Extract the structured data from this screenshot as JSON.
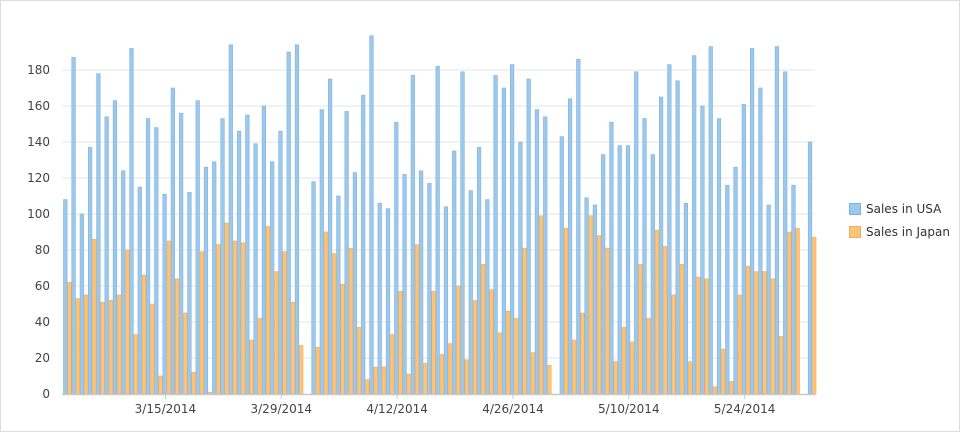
{
  "chart_data": {
    "type": "bar",
    "start_date": "3/3/2014",
    "x_tick_labels": [
      {
        "index": 12,
        "label": "3/15/2014"
      },
      {
        "index": 26,
        "label": "3/29/2014"
      },
      {
        "index": 40,
        "label": "4/12/2014"
      },
      {
        "index": 54,
        "label": "4/26/2014"
      },
      {
        "index": 68,
        "label": "5/10/2014"
      },
      {
        "index": 82,
        "label": "5/24/2014"
      }
    ],
    "ylim": [
      0,
      200
    ],
    "y_ticks": [
      0,
      20,
      40,
      60,
      80,
      100,
      120,
      140,
      160,
      180
    ],
    "grid": true,
    "legend_position": "right",
    "series": [
      {
        "name": "Sales in USA",
        "color": "#9cc8ec",
        "stroke": "#7fb3e0",
        "values": [
          108,
          187,
          100,
          137,
          178,
          154,
          163,
          124,
          192,
          115,
          153,
          148,
          111,
          170,
          156,
          112,
          163,
          126,
          129,
          153,
          194,
          146,
          155,
          139,
          160,
          129,
          146,
          190,
          194,
          null,
          118,
          158,
          175,
          110,
          157,
          123,
          166,
          199,
          106,
          103,
          151,
          122,
          177,
          124,
          117,
          182,
          104,
          135,
          179,
          113,
          137,
          108,
          177,
          170,
          183,
          140,
          175,
          158,
          154,
          null,
          143,
          164,
          186,
          109,
          105,
          133,
          151,
          138,
          138,
          179,
          153,
          133,
          165,
          183,
          174,
          106,
          188,
          160,
          193,
          153,
          116,
          126,
          161,
          192,
          170,
          105,
          193,
          179,
          116,
          null,
          140
        ]
      },
      {
        "name": "Sales in Japan",
        "color": "#fcc37a",
        "stroke": "#f5ad55",
        "values": [
          62,
          53,
          55,
          86,
          51,
          52,
          55,
          80,
          33,
          66,
          50,
          10,
          85,
          64,
          45,
          12,
          79,
          1,
          83,
          95,
          85,
          84,
          30,
          42,
          93,
          68,
          79,
          51,
          27,
          null,
          26,
          90,
          78,
          61,
          81,
          37,
          8,
          15,
          15,
          33,
          57,
          11,
          83,
          17,
          57,
          22,
          28,
          60,
          19,
          52,
          72,
          58,
          34,
          46,
          42,
          81,
          23,
          99,
          16,
          null,
          92,
          30,
          45,
          99,
          88,
          81,
          18,
          37,
          29,
          72,
          42,
          91,
          82,
          55,
          72,
          18,
          65,
          64,
          4,
          25,
          7,
          55,
          71,
          68,
          68,
          64,
          32,
          90,
          92,
          null,
          87
        ]
      }
    ]
  }
}
